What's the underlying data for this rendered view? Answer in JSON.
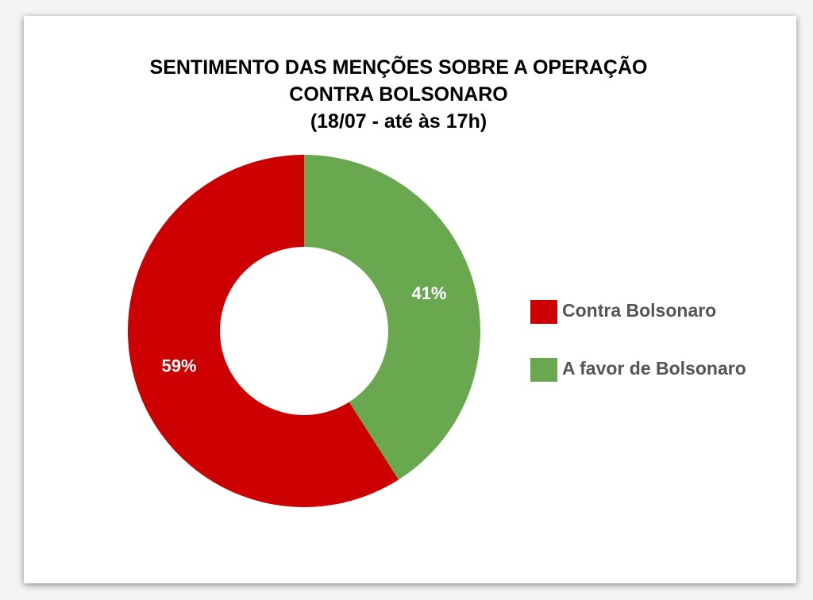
{
  "chart_data": {
    "type": "donut",
    "title": "SENTIMENTO DAS MENÇÕES SOBRE A OPERAÇÃO CONTRA BOLSONARO",
    "subtitle": "(18/07 - até às 17h)",
    "categories": [
      "Contra Bolsonaro",
      "A favor de Bolsonaro"
    ],
    "values": [
      59,
      41
    ],
    "value_labels": [
      "59%",
      "41%"
    ],
    "colors": [
      "#cc0000",
      "#6aa84f"
    ],
    "legend": "right"
  }
}
